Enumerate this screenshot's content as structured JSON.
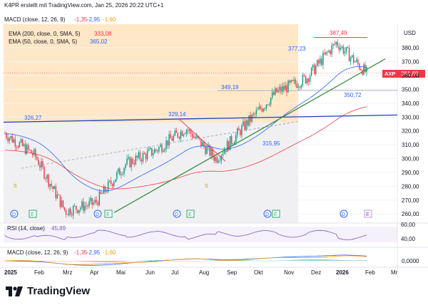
{
  "header": {
    "caption": "K4PR erstellt mit TradingView.com, Jan 25, 2026 20:22 UTC+1",
    "macd_label": "MACD (close, 12, 26, 9)",
    "macd_values": [
      "-1,35",
      "-2,95",
      "-1,60"
    ]
  },
  "legend": {
    "ema200_label": "EMA (200, close, 0, SMA, 5)",
    "ema200_value": "333,08",
    "ema50_label": "EMA (50, close, 0, SMA, 5)",
    "ema50_value": "365,02"
  },
  "currency": "USD",
  "ticker": {
    "symbol": "AXP",
    "price": "361,69",
    "color": "#f23645"
  },
  "price_labels": [
    "326,27",
    "329,14",
    "349,19",
    "377,23",
    "387,49",
    "350,72",
    "315,95"
  ],
  "y_ticks": [
    "380,00",
    "370,00",
    "360,00",
    "350,00",
    "340,00",
    "330,00",
    "320,00",
    "310,00",
    "300,00",
    "290,00",
    "280,00",
    "270,00",
    "260,00"
  ],
  "rsi": {
    "label": "RSI (14, close)",
    "value": "45,89",
    "ticks": [
      "60,00",
      "40,00"
    ]
  },
  "macd_pane": {
    "label": "MACD (close, 12, 26, 9)",
    "values": [
      "-1,35",
      "-2,95",
      "-1,60"
    ],
    "ticks": [
      "0,0000"
    ]
  },
  "x_ticks": [
    "2025",
    "Feb",
    "Mrz",
    "Apr",
    "Mai",
    "Jun",
    "Jul",
    "Aug",
    "Sep",
    "Okt",
    "Nov",
    "Dez",
    "2026",
    "Feb",
    "Mr"
  ],
  "markers": {
    "D": "D",
    "E": "E",
    "S": "S"
  },
  "footer": {
    "brand": "TradingView"
  },
  "colors": {
    "up": "#089981",
    "down": "#f23645",
    "ema50": "#2962ff",
    "ema200": "#f23645",
    "trend_green": "#388e3c",
    "trend_blue": "#1e3fbf",
    "highlight": "#ffe0b2",
    "macd": "#2962ff",
    "signal": "#ff9800"
  },
  "chart_data": {
    "type": "candlestick",
    "title": "AXP",
    "ylabel": "USD",
    "ylim": [
      256,
      394
    ],
    "x": [
      "2025-01",
      "2025-02",
      "2025-03",
      "2025-04",
      "2025-05",
      "2025-06",
      "2025-07",
      "2025-08",
      "2025-09",
      "2025-10",
      "2025-11",
      "2025-12",
      "2026-01"
    ],
    "close": [
      318,
      302,
      262,
      268,
      296,
      306,
      322,
      300,
      325,
      348,
      358,
      384,
      361.69
    ],
    "series": [
      {
        "name": "EMA (200, close, 0, SMA, 5)",
        "last": 333.08
      },
      {
        "name": "EMA (50, close, 0, SMA, 5)",
        "last": 365.02
      }
    ],
    "annotations": [
      {
        "label": "326,27",
        "value": 326.27
      },
      {
        "label": "329,14",
        "value": 329.14
      },
      {
        "label": "349,19",
        "value": 349.19
      },
      {
        "label": "377,23",
        "value": 377.23
      },
      {
        "label": "387,49",
        "value": 387.49
      },
      {
        "label": "350,72",
        "value": 350.72
      },
      {
        "label": "315,95",
        "value": 315.95
      }
    ]
  }
}
